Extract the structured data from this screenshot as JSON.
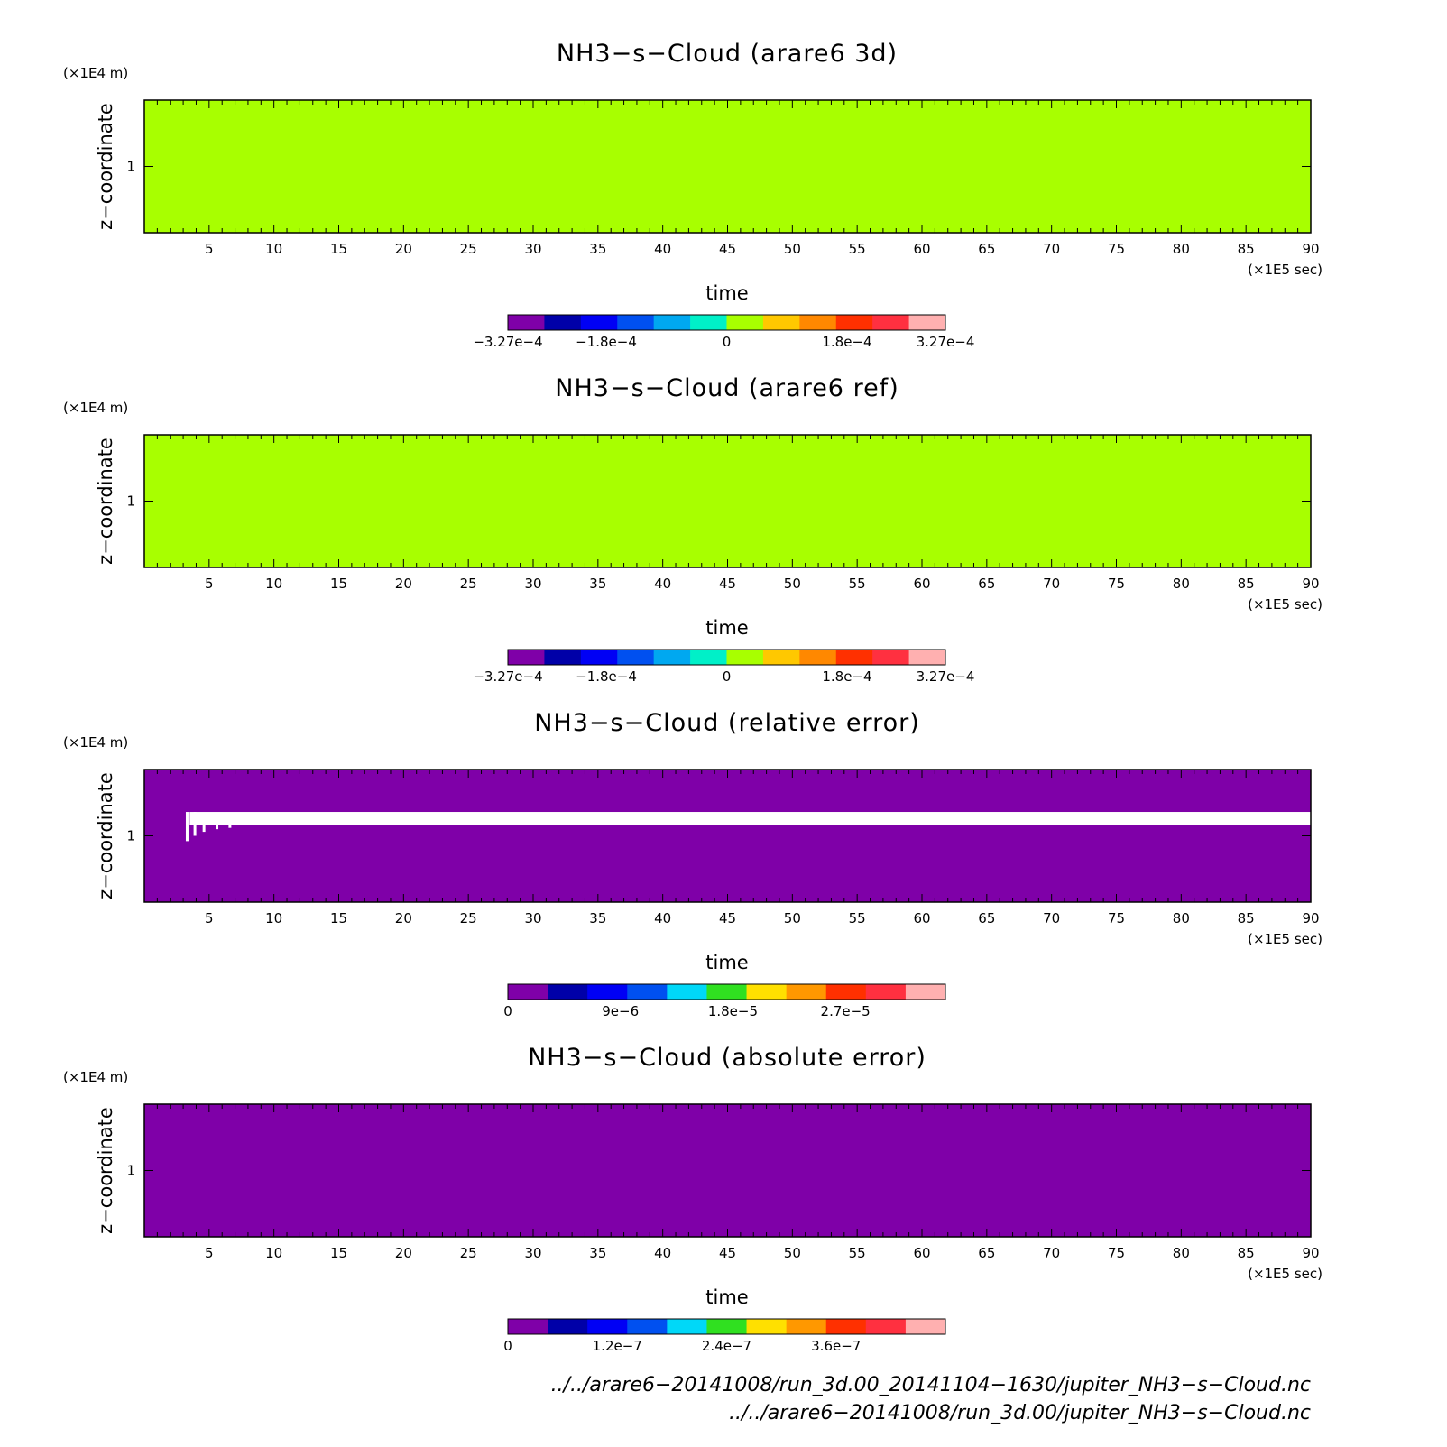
{
  "chart_data": [
    {
      "type": "heatmap",
      "title": "NH3−s−Cloud (arare6 3d)",
      "xlabel": "time",
      "ylabel": "z−coordinate",
      "x_unit": "(×1E5 sec)",
      "y_unit": "(×1E4 m)",
      "xlim": [
        0,
        90
      ],
      "ylim": [
        0.5,
        1.5
      ],
      "xticks": [
        5,
        10,
        15,
        20,
        25,
        30,
        35,
        40,
        45,
        50,
        55,
        60,
        65,
        70,
        75,
        80,
        85,
        90
      ],
      "yticks": [
        1
      ],
      "field": "uniform",
      "field_value": 0,
      "colorbar": {
        "range": [
          -0.000327,
          0.000327
        ],
        "colors": [
          "#7f00a8",
          "#0000a8",
          "#0000f5",
          "#0050f0",
          "#00a8f0",
          "#00f0c8",
          "#a8ff00",
          "#ffc800",
          "#ff8800",
          "#ff3000",
          "#ff3040",
          "#ffb0b0"
        ],
        "labels": [
          {
            "value": -0.000327,
            "text": "−3.27e−4"
          },
          {
            "value": -0.00018,
            "text": "−1.8e−4"
          },
          {
            "value": 0,
            "text": "0"
          },
          {
            "value": 0.00018,
            "text": "1.8e−4"
          },
          {
            "value": 0.000327,
            "text": "3.27e−4"
          }
        ]
      }
    },
    {
      "type": "heatmap",
      "title": "NH3−s−Cloud (arare6 ref)",
      "xlabel": "time",
      "ylabel": "z−coordinate",
      "x_unit": "(×1E5 sec)",
      "y_unit": "(×1E4 m)",
      "xlim": [
        0,
        90
      ],
      "ylim": [
        0.5,
        1.5
      ],
      "xticks": [
        5,
        10,
        15,
        20,
        25,
        30,
        35,
        40,
        45,
        50,
        55,
        60,
        65,
        70,
        75,
        80,
        85,
        90
      ],
      "yticks": [
        1
      ],
      "field": "uniform",
      "field_value": 0,
      "colorbar": {
        "range": [
          -0.000327,
          0.000327
        ],
        "colors": [
          "#7f00a8",
          "#0000a8",
          "#0000f5",
          "#0050f0",
          "#00a8f0",
          "#00f0c8",
          "#a8ff00",
          "#ffc800",
          "#ff8800",
          "#ff3000",
          "#ff3040",
          "#ffb0b0"
        ],
        "labels": [
          {
            "value": -0.000327,
            "text": "−3.27e−4"
          },
          {
            "value": -0.00018,
            "text": "−1.8e−4"
          },
          {
            "value": 0,
            "text": "0"
          },
          {
            "value": 0.00018,
            "text": "1.8e−4"
          },
          {
            "value": 0.000327,
            "text": "3.27e−4"
          }
        ]
      }
    },
    {
      "type": "heatmap",
      "title": "NH3−s−Cloud (relative error)",
      "xlabel": "time",
      "ylabel": "z−coordinate",
      "x_unit": "(×1E5 sec)",
      "y_unit": "(×1E4 m)",
      "xlim": [
        0,
        90
      ],
      "ylim": [
        0.5,
        1.5
      ],
      "xticks": [
        5,
        10,
        15,
        20,
        25,
        30,
        35,
        40,
        45,
        50,
        55,
        60,
        65,
        70,
        75,
        80,
        85,
        90
      ],
      "yticks": [
        1
      ],
      "field": "uniform",
      "field_value": 0,
      "blank_band": {
        "x_start": 3.5,
        "x_end": 90,
        "y_low": 1.08,
        "y_high": 1.18
      },
      "colorbar": {
        "range": [
          0,
          3.5e-05
        ],
        "colors": [
          "#7f00a8",
          "#0000a8",
          "#0000f5",
          "#0050f0",
          "#00d8f8",
          "#30e020",
          "#ffe000",
          "#ff9800",
          "#ff3000",
          "#ff3040",
          "#ffb0b0"
        ],
        "labels": [
          {
            "value": 0,
            "text": "0"
          },
          {
            "value": 9e-06,
            "text": "9e−6"
          },
          {
            "value": 1.8e-05,
            "text": "1.8e−5"
          },
          {
            "value": 2.7e-05,
            "text": "2.7e−5"
          }
        ]
      }
    },
    {
      "type": "heatmap",
      "title": "NH3−s−Cloud (absolute error)",
      "xlabel": "time",
      "ylabel": "z−coordinate",
      "x_unit": "(×1E5 sec)",
      "y_unit": "(×1E4 m)",
      "xlim": [
        0,
        90
      ],
      "ylim": [
        0.5,
        1.5
      ],
      "xticks": [
        5,
        10,
        15,
        20,
        25,
        30,
        35,
        40,
        45,
        50,
        55,
        60,
        65,
        70,
        75,
        80,
        85,
        90
      ],
      "yticks": [
        1
      ],
      "field": "uniform",
      "field_value": 0,
      "colorbar": {
        "range": [
          0,
          4.8e-07
        ],
        "colors": [
          "#7f00a8",
          "#0000a8",
          "#0000f5",
          "#0050f0",
          "#00d8f8",
          "#30e020",
          "#ffe000",
          "#ff9800",
          "#ff3000",
          "#ff3040",
          "#ffb0b0"
        ],
        "labels": [
          {
            "value": 0,
            "text": "0"
          },
          {
            "value": 1.2e-07,
            "text": "1.2e−7"
          },
          {
            "value": 2.4e-07,
            "text": "2.4e−7"
          },
          {
            "value": 3.6e-07,
            "text": "3.6e−7"
          }
        ]
      }
    }
  ],
  "footer": {
    "line1": "../../arare6−20141008/run_3d.00_20141104−1630/jupiter_NH3−s−Cloud.nc",
    "line2": "../../arare6−20141008/run_3d.00/jupiter_NH3−s−Cloud.nc"
  }
}
